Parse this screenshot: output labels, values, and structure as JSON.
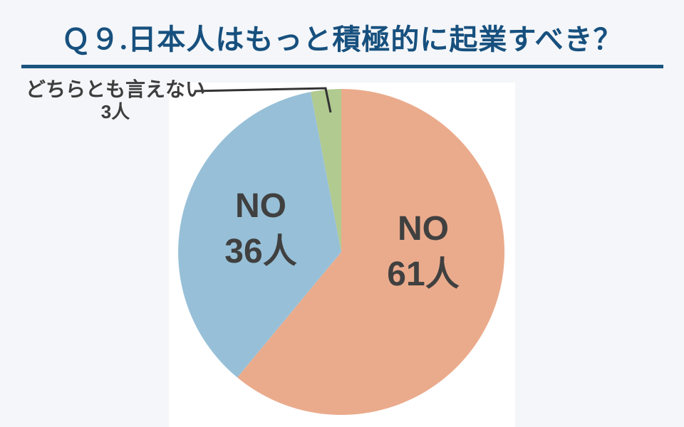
{
  "page": {
    "background_color": "#f4f6f9",
    "plot_background_color": "#ffffff"
  },
  "header": {
    "title": "Ｑ９.日本人はもっと積極的に起業すべき？",
    "title_color": "#17507e",
    "rule_color": "#1a547f"
  },
  "chart_data": {
    "type": "pie",
    "title": "Ｑ９.日本人はもっと積極的に起業すべき？",
    "unit": "人",
    "start_angle": "12-oclock",
    "direction": "clockwise",
    "label_color": "#404040",
    "slices": [
      {
        "id": "no-61",
        "label": "NO",
        "value": 61,
        "color": "#eaab8c",
        "display": [
          "NO",
          "61人"
        ],
        "label_placement": "inside"
      },
      {
        "id": "no-36",
        "label": "NO",
        "value": 36,
        "color": "#97c0d8",
        "display": [
          "NO",
          "36人"
        ],
        "label_placement": "inside"
      },
      {
        "id": "neither-3",
        "label": "どちらとも言えない",
        "value": 3,
        "color": "#b1ca90",
        "display": [
          "どちらとも言えない",
          "3人"
        ],
        "label_placement": "callout-outside-top-left"
      }
    ]
  }
}
